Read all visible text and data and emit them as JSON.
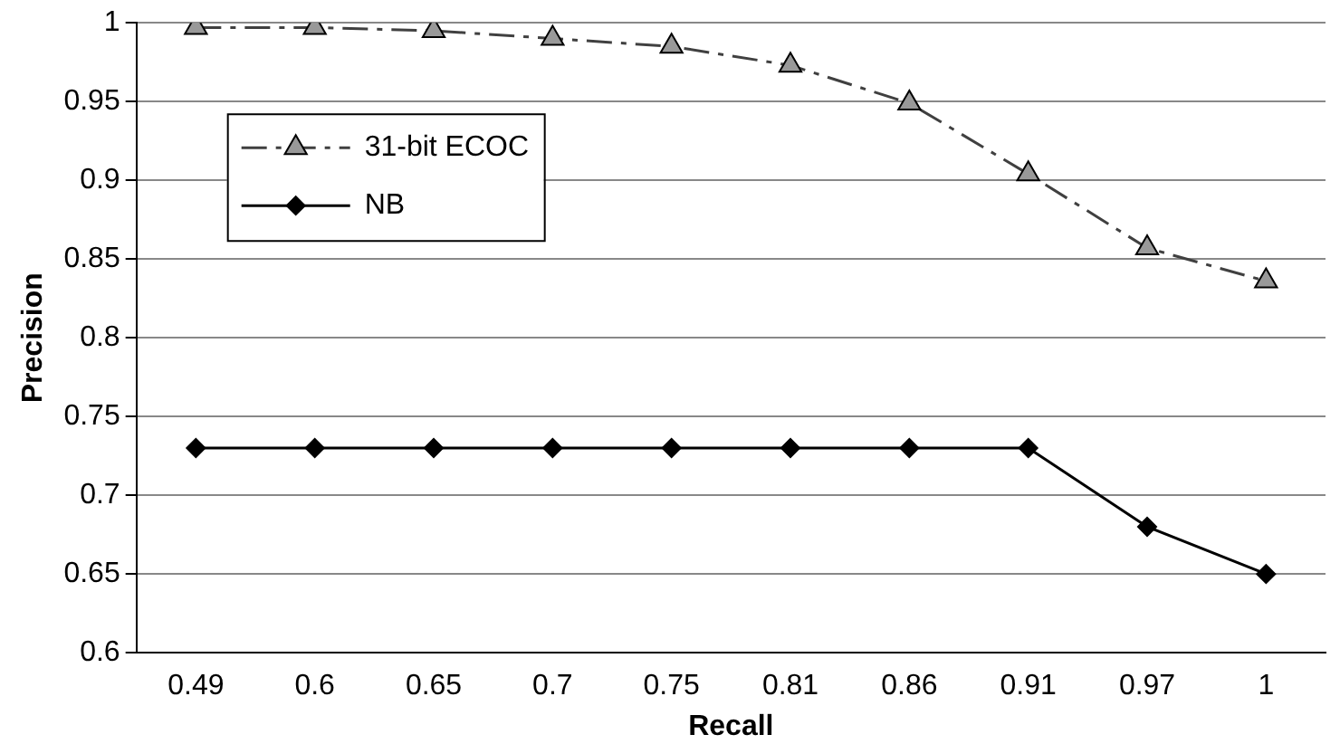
{
  "chart_data": {
    "type": "line",
    "xlabel": "Recall",
    "ylabel": "Precision",
    "categories": [
      "0.49",
      "0.6",
      "0.65",
      "0.7",
      "0.75",
      "0.81",
      "0.86",
      "0.91",
      "0.97",
      "1"
    ],
    "series": [
      {
        "name": "31-bit ECOC",
        "color": "#404040",
        "marker": "triangle",
        "line_style": "dashed",
        "values": [
          0.997,
          0.997,
          0.995,
          0.99,
          0.985,
          0.973,
          0.949,
          0.904,
          0.857,
          0.836
        ]
      },
      {
        "name": "NB",
        "color": "#000000",
        "marker": "diamond",
        "line_style": "solid",
        "values": [
          0.73,
          0.73,
          0.73,
          0.73,
          0.73,
          0.73,
          0.73,
          0.73,
          0.68,
          0.65
        ]
      }
    ],
    "ylim": [
      0.6,
      1
    ],
    "yticks": [
      0.6,
      0.65,
      0.7,
      0.75,
      0.8,
      0.85,
      0.9,
      0.95,
      1
    ],
    "grid": "y",
    "legend": "top left"
  }
}
